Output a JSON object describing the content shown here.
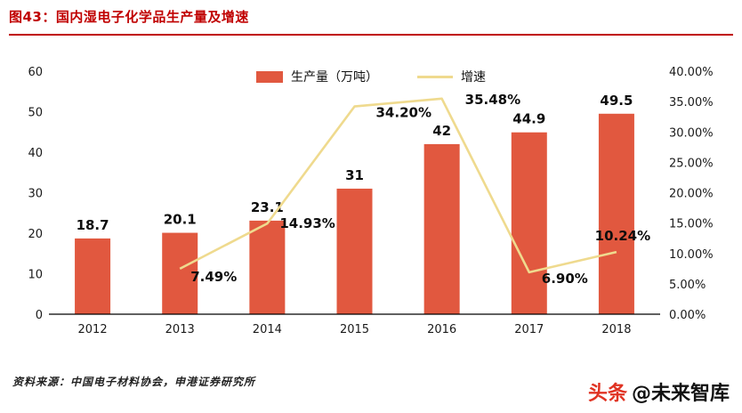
{
  "header": {
    "title": "图43：国内湿电子化学品生产量及增速"
  },
  "theme": {
    "title_red": "#C00000",
    "bar_color": "#E1583F",
    "line_color": "#EFDA8E",
    "brand_red": "#E03323"
  },
  "chart_data": {
    "type": "bar+line combo",
    "categories": [
      "2012",
      "2013",
      "2014",
      "2015",
      "2016",
      "2017",
      "2018"
    ],
    "series": [
      {
        "name": "生产量（万吨）",
        "type": "bar",
        "axis": "left",
        "color": "#E1583F",
        "values": [
          18.7,
          20.1,
          23.1,
          31,
          42,
          44.9,
          49.5
        ],
        "labels": [
          "18.7",
          "20.1",
          "23.1",
          "31",
          "42",
          "44.9",
          "49.5"
        ]
      },
      {
        "name": "增速",
        "type": "line",
        "axis": "right",
        "color": "#EFDA8E",
        "values": [
          null,
          7.49,
          14.93,
          34.2,
          35.48,
          6.9,
          10.24
        ],
        "labels": [
          null,
          "7.49%",
          "14.93%",
          "34.20%",
          "35.48%",
          "6.90%",
          "10.24%"
        ]
      }
    ],
    "left_axis": {
      "min": 0,
      "max": 60,
      "step": 10,
      "ticks": [
        "60",
        "50",
        "40",
        "30",
        "20",
        "10",
        "0"
      ]
    },
    "right_axis": {
      "min": 0,
      "max": 40,
      "step": 5,
      "ticks": [
        "40.00%",
        "35.00%",
        "30.00%",
        "25.00%",
        "20.00%",
        "15.00%",
        "10.00%",
        "5.00%",
        "0.00%"
      ]
    },
    "legend_position": "top-center",
    "grid": false,
    "title": "国内湿电子化学品生产量及增速",
    "xlabel": "",
    "ylabel_left": "生产量（万吨）",
    "ylabel_right": "增速"
  },
  "footer": {
    "source": "资料来源：中国电子材料协会，申港证券研究所",
    "brand_red": "头条",
    "brand_black": "@未来智库"
  }
}
